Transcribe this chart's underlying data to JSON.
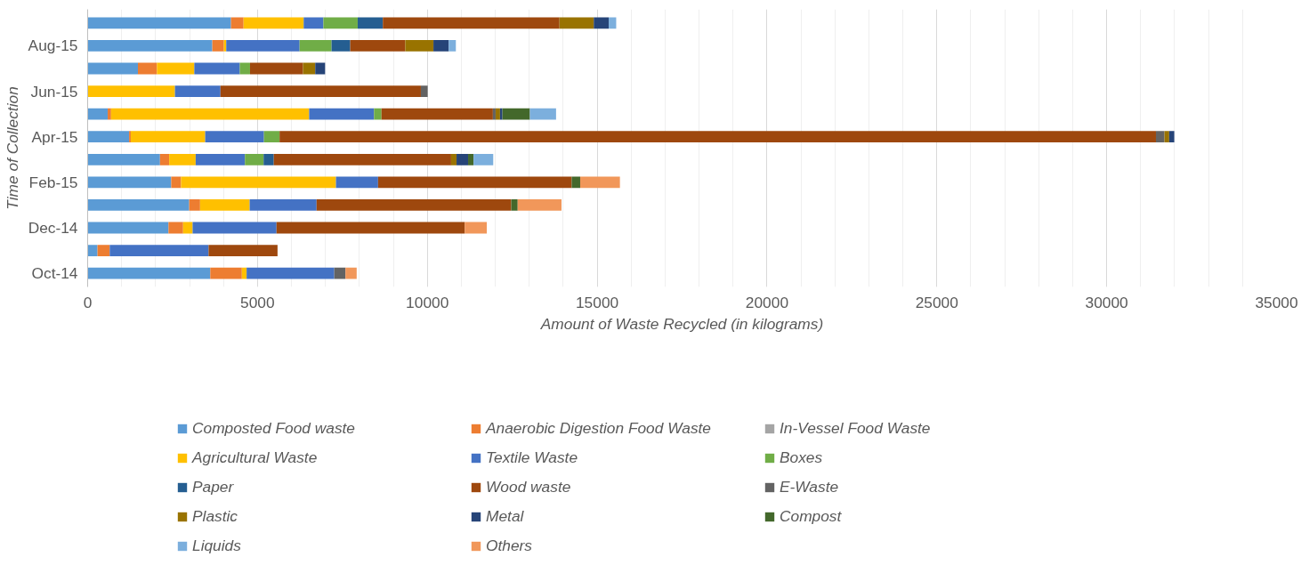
{
  "chart_data": {
    "type": "bar",
    "orientation": "horizontal",
    "stacked": true,
    "xlabel": "Amount of Waste Recycled (in kilograms)",
    "ylabel": "Time of Collection",
    "categories": [
      null,
      "Aug-15",
      null,
      "Jun-15",
      null,
      "Apr-15",
      null,
      "Feb-15",
      null,
      "Dec-14",
      null,
      "Oct-14"
    ],
    "xlim": [
      0,
      35000
    ],
    "xticks": [
      0,
      5000,
      10000,
      15000,
      20000,
      25000,
      30000,
      35000
    ],
    "grid": "x",
    "legend": "bottom",
    "series": [
      {
        "name": "Composted Food waste",
        "color": "#5b9bd5",
        "values": [
          4220,
          3670,
          1480,
          0,
          590,
          1220,
          2130,
          2460,
          2990,
          2380,
          290,
          3610
        ]
      },
      {
        "name": "Anaerobic Digestion Food Waste",
        "color": "#ed7d31",
        "values": [
          370,
          340,
          560,
          0,
          100,
          50,
          270,
          290,
          320,
          430,
          360,
          930
        ]
      },
      {
        "name": "In-Vessel Food Waste",
        "color": "#a5a5a5",
        "values": [
          0,
          0,
          0,
          0,
          0,
          0,
          0,
          0,
          0,
          0,
          0,
          0
        ]
      },
      {
        "name": "Agricultural Waste",
        "color": "#ffc000",
        "values": [
          1770,
          70,
          1100,
          2570,
          5830,
          2190,
          780,
          4560,
          1460,
          280,
          0,
          140
        ]
      },
      {
        "name": "Textile Waste",
        "color": "#4472c4",
        "values": [
          580,
          2160,
          1340,
          1340,
          1910,
          1730,
          1450,
          1240,
          1970,
          2470,
          2910,
          2580
        ]
      },
      {
        "name": "Boxes",
        "color": "#70ad47",
        "values": [
          1010,
          940,
          300,
          0,
          220,
          460,
          550,
          0,
          0,
          0,
          0,
          0
        ]
      },
      {
        "name": "Paper",
        "color": "#255e91",
        "values": [
          740,
          550,
          0,
          0,
          0,
          0,
          300,
          0,
          0,
          0,
          0,
          0
        ]
      },
      {
        "name": "Wood waste",
        "color": "#9e480e",
        "values": [
          5200,
          1620,
          1560,
          5900,
          3280,
          25800,
          5220,
          5700,
          5730,
          5540,
          2030,
          0
        ]
      },
      {
        "name": "E-Waste",
        "color": "#636363",
        "values": [
          0,
          0,
          0,
          200,
          80,
          250,
          0,
          0,
          0,
          0,
          0,
          330
        ]
      },
      {
        "name": "Plastic",
        "color": "#997300",
        "values": [
          1010,
          830,
          360,
          0,
          130,
          140,
          160,
          0,
          0,
          0,
          0,
          0
        ]
      },
      {
        "name": "Metal",
        "color": "#264478",
        "values": [
          440,
          450,
          290,
          0,
          70,
          150,
          340,
          0,
          0,
          0,
          0,
          0
        ]
      },
      {
        "name": "Compost",
        "color": "#43682b",
        "values": [
          0,
          0,
          0,
          0,
          810,
          0,
          160,
          250,
          190,
          0,
          0,
          0
        ]
      },
      {
        "name": "Liquids",
        "color": "#7cafdd",
        "values": [
          220,
          210,
          0,
          0,
          770,
          0,
          580,
          0,
          0,
          0,
          0,
          0
        ]
      },
      {
        "name": "Others",
        "color": "#f1975a",
        "values": [
          0,
          0,
          0,
          0,
          0,
          0,
          0,
          1170,
          1290,
          650,
          0,
          330
        ]
      }
    ]
  }
}
